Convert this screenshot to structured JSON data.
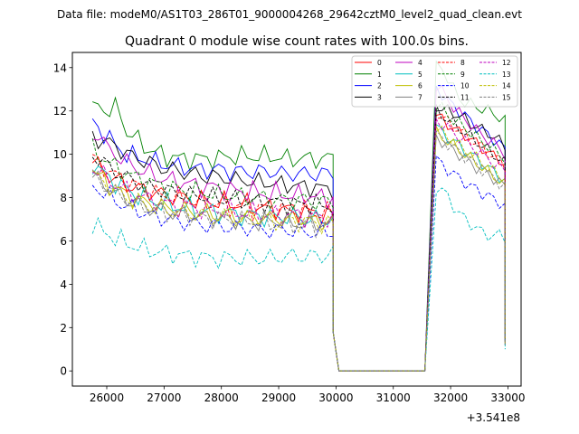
{
  "chart_data": {
    "type": "line",
    "suptitle": "Data file: modeM0/AS1T03_286T01_9000004268_29642cztM0_level2_quad_clean.evt",
    "title": "Quadrant 0 module wise count rates with 100.0s bins.",
    "xlabel": "",
    "ylabel": "",
    "x_offset_label": "+3.541e8",
    "xlim": [
      25400,
      33230
    ],
    "ylim": [
      -0.7,
      14.7
    ],
    "xticks": [
      26000,
      27000,
      28000,
      29000,
      30000,
      31000,
      32000,
      33000
    ],
    "yticks": [
      0,
      2,
      4,
      6,
      8,
      10,
      12,
      14
    ],
    "xtick_labels": [
      "26000",
      "27000",
      "28000",
      "29000",
      "30000",
      "31000",
      "32000",
      "33000"
    ],
    "ytick_labels": [
      "0",
      "2",
      "4",
      "6",
      "8",
      "10",
      "12",
      "14"
    ],
    "legend_position": "upper right",
    "x_start": 25750,
    "x_step": 100,
    "gap": {
      "drop_start": 29900,
      "zero_from": 30050,
      "zero_to": 31550,
      "rise_end": 31750,
      "end": 32950
    },
    "series": [
      {
        "name": "0",
        "color": "#ff0000",
        "dash": "solid",
        "first_good": [
          9.6,
          9.5,
          9.3,
          9.0,
          8.8,
          8.8,
          8.6,
          8.5,
          8.4,
          8.4,
          8.3,
          8.2,
          8.2,
          8.1,
          8.1,
          8.0,
          8.0,
          7.9,
          7.9,
          7.9,
          7.8,
          7.8,
          7.8,
          7.8,
          7.7,
          7.7,
          7.7,
          7.7,
          7.6,
          7.6,
          7.6,
          7.5,
          7.5,
          7.5,
          7.5,
          7.4,
          7.4,
          7.4,
          7.3,
          7.3,
          7.3,
          7.2,
          7.2
        ],
        "second_good": [
          11.8,
          11.6,
          11.4,
          11.2,
          11.0,
          10.9,
          10.7,
          10.5,
          10.3,
          10.1,
          9.9,
          9.8,
          9.5
        ],
        "end_value": 1.4
      },
      {
        "name": "1",
        "color": "#008000",
        "dash": "solid",
        "first_good": [
          12.0,
          12.3,
          12.1,
          12.0,
          12.1,
          11.8,
          11.0,
          10.9,
          10.6,
          10.4,
          10.2,
          10.1,
          10.0,
          9.9,
          9.9,
          9.8,
          9.8,
          9.8,
          9.8,
          9.8,
          9.8,
          9.8,
          9.8,
          9.9,
          9.9,
          9.9,
          9.9,
          9.9,
          9.9,
          9.9,
          9.9,
          9.9,
          9.9,
          9.8,
          9.8,
          9.8,
          9.8,
          9.8,
          9.8,
          9.8,
          9.8,
          9.8,
          9.9
        ],
        "second_good": [
          14.0,
          14.0,
          13.5,
          13.0,
          12.6,
          12.4,
          12.3,
          12.2,
          12.1,
          12.0,
          11.9,
          11.7,
          11.5
        ],
        "end_value": 1.9
      },
      {
        "name": "2",
        "color": "#0000ff",
        "dash": "solid",
        "first_good": [
          11.5,
          11.2,
          11.0,
          10.7,
          10.4,
          10.2,
          10.0,
          9.9,
          9.8,
          9.8,
          9.7,
          9.6,
          9.6,
          9.5,
          9.5,
          9.4,
          9.4,
          9.4,
          9.3,
          9.3,
          9.3,
          9.3,
          9.3,
          9.3,
          9.2,
          9.2,
          9.2,
          9.2,
          9.2,
          9.2,
          9.2,
          9.2,
          9.2,
          9.1,
          9.1,
          9.1,
          9.1,
          9.1,
          9.1,
          9.1,
          9.1,
          9.1,
          9.1
        ],
        "second_good": [
          13.0,
          12.8,
          12.5,
          12.2,
          12.0,
          11.8,
          11.5,
          11.3,
          11.1,
          10.9,
          10.7,
          10.5,
          10.2
        ],
        "end_value": 1.6
      },
      {
        "name": "3",
        "color": "#000000",
        "dash": "solid",
        "first_good": [
          10.8,
          10.7,
          10.6,
          10.5,
          10.4,
          10.2,
          10.0,
          9.9,
          9.8,
          9.7,
          9.6,
          9.5,
          9.4,
          9.3,
          9.3,
          9.2,
          9.2,
          9.1,
          9.1,
          9.0,
          9.0,
          9.0,
          8.9,
          8.9,
          8.9,
          8.8,
          8.8,
          8.8,
          8.7,
          8.7,
          8.7,
          8.7,
          8.6,
          8.6,
          8.6,
          8.6,
          8.5,
          8.5,
          8.5,
          8.5,
          8.4,
          8.4,
          8.4
        ],
        "second_good": [
          12.2,
          12.1,
          12.0,
          11.9,
          11.8,
          11.6,
          11.4,
          11.3,
          11.1,
          11.0,
          10.8,
          10.6,
          10.4
        ],
        "end_value": 1.5
      },
      {
        "name": "4",
        "color": "#bf00bf",
        "dash": "solid",
        "first_good": [
          10.8,
          11.0,
          10.5,
          10.2,
          10.0,
          9.8,
          9.6,
          9.5,
          9.3,
          9.2,
          9.1,
          9.0,
          8.9,
          8.8,
          8.8,
          8.7,
          8.7,
          8.6,
          8.6,
          8.5,
          8.5,
          8.5,
          8.4,
          8.4,
          8.4,
          8.3,
          8.3,
          8.3,
          8.3,
          8.2,
          8.2,
          8.2,
          8.2,
          8.2,
          8.1,
          8.1,
          8.1,
          8.1,
          8.1,
          8.0,
          8.0,
          8.0,
          8.0
        ],
        "second_good": [
          13.2,
          12.9,
          12.5,
          12.2,
          11.9,
          11.6,
          11.4,
          11.1,
          10.9,
          10.7,
          10.5,
          10.3,
          10.0
        ],
        "end_value": 1.7
      },
      {
        "name": "5",
        "color": "#00bfbf",
        "dash": "solid",
        "first_good": [
          9.6,
          9.3,
          9.1,
          8.9,
          8.7,
          8.5,
          8.4,
          8.2,
          8.1,
          8.0,
          7.9,
          7.8,
          7.7,
          7.7,
          7.6,
          7.6,
          7.5,
          7.5,
          7.4,
          7.4,
          7.4,
          7.3,
          7.3,
          7.3,
          7.3,
          7.2,
          7.2,
          7.2,
          7.2,
          7.2,
          7.1,
          7.1,
          7.1,
          7.1,
          7.1,
          7.1,
          7.1,
          7.0,
          7.0,
          7.0,
          7.0,
          7.0,
          7.0
        ],
        "second_good": [
          11.3,
          11.0,
          10.8,
          10.6,
          10.4,
          10.2,
          10.0,
          9.8,
          9.6,
          9.4,
          9.2,
          9.0,
          8.8
        ],
        "end_value": 1.3
      },
      {
        "name": "6",
        "color": "#bfbf00",
        "dash": "solid",
        "first_good": [
          9.3,
          9.0,
          8.8,
          8.6,
          8.4,
          8.3,
          8.1,
          8.0,
          7.9,
          7.8,
          7.7,
          7.7,
          7.6,
          7.5,
          7.5,
          7.4,
          7.4,
          7.4,
          7.3,
          7.3,
          7.3,
          7.2,
          7.2,
          7.2,
          7.2,
          7.1,
          7.1,
          7.1,
          7.1,
          7.1,
          7.1,
          7.0,
          7.0,
          7.0,
          7.0,
          7.0,
          7.0,
          7.0,
          6.9,
          6.9,
          6.9,
          6.9,
          6.9
        ],
        "second_good": [
          11.0,
          10.8,
          10.6,
          10.4,
          10.2,
          10.0,
          9.8,
          9.6,
          9.4,
          9.2,
          9.0,
          8.8,
          8.6
        ],
        "end_value": 1.2
      },
      {
        "name": "7",
        "color": "#808080",
        "dash": "solid",
        "first_good": [
          9.0,
          8.8,
          8.6,
          8.4,
          8.2,
          8.1,
          7.9,
          7.8,
          7.7,
          7.6,
          7.5,
          7.5,
          7.4,
          7.4,
          7.3,
          7.3,
          7.2,
          7.2,
          7.2,
          7.1,
          7.1,
          7.1,
          7.0,
          7.0,
          7.0,
          7.0,
          7.0,
          6.9,
          6.9,
          6.9,
          6.9,
          6.9,
          6.9,
          6.9,
          6.8,
          6.8,
          6.8,
          6.8,
          6.8,
          6.8,
          6.8,
          6.8,
          6.8
        ],
        "second_good": [
          10.8,
          10.6,
          10.4,
          10.2,
          10.0,
          9.8,
          9.6,
          9.4,
          9.3,
          9.1,
          8.9,
          8.7,
          8.5
        ],
        "end_value": 1.2
      },
      {
        "name": "8",
        "color": "#ff0000",
        "dash": "dashed",
        "first_good": [
          9.8,
          9.6,
          9.4,
          9.2,
          9.0,
          8.9,
          8.7,
          8.6,
          8.5,
          8.4,
          8.3,
          8.2,
          8.1,
          8.1,
          8.0,
          8.0,
          7.9,
          7.9,
          7.8,
          7.8,
          7.8,
          7.7,
          7.7,
          7.7,
          7.6,
          7.6,
          7.6,
          7.6,
          7.5,
          7.5,
          7.5,
          7.5,
          7.5,
          7.4,
          7.4,
          7.4,
          7.4,
          7.4,
          7.3,
          7.3,
          7.3,
          7.3,
          7.3
        ],
        "second_good": [
          11.9,
          11.7,
          11.5,
          11.3,
          11.1,
          10.9,
          10.7,
          10.5,
          10.3,
          10.1,
          9.9,
          9.7,
          9.5
        ],
        "end_value": 1.4
      },
      {
        "name": "9",
        "color": "#008000",
        "dash": "dashed",
        "first_good": [
          10.2,
          10.0,
          9.8,
          9.6,
          9.4,
          9.3,
          9.1,
          9.0,
          8.9,
          8.8,
          8.7,
          8.6,
          8.6,
          8.5,
          8.4,
          8.4,
          8.3,
          8.3,
          8.3,
          8.2,
          8.2,
          8.2,
          8.1,
          8.1,
          8.1,
          8.1,
          8.0,
          8.0,
          8.0,
          8.0,
          8.0,
          7.9,
          7.9,
          7.9,
          7.9,
          7.9,
          7.9,
          7.9,
          7.8,
          7.8,
          7.8,
          7.8,
          7.8
        ],
        "second_good": [
          12.3,
          12.1,
          11.8,
          11.6,
          11.4,
          11.2,
          11.0,
          10.8,
          10.6,
          10.4,
          10.2,
          10.0,
          9.8
        ],
        "end_value": 1.5
      },
      {
        "name": "10",
        "color": "#0000ff",
        "dash": "dashed",
        "first_good": [
          8.6,
          8.4,
          8.2,
          8.0,
          7.9,
          7.7,
          7.6,
          7.5,
          7.4,
          7.3,
          7.2,
          7.1,
          7.1,
          7.0,
          7.0,
          6.9,
          6.9,
          6.8,
          6.8,
          6.8,
          6.7,
          6.7,
          6.7,
          6.7,
          6.6,
          6.6,
          6.6,
          6.6,
          6.6,
          6.5,
          6.5,
          6.5,
          6.5,
          6.5,
          6.5,
          6.5,
          6.4,
          6.4,
          6.4,
          6.4,
          6.4,
          6.4,
          6.4
        ],
        "second_good": [
          9.8,
          9.5,
          9.3,
          9.1,
          8.9,
          8.7,
          8.5,
          8.4,
          8.2,
          8.1,
          7.9,
          7.8,
          7.6
        ],
        "end_value": 1.2
      },
      {
        "name": "11",
        "color": "#000000",
        "dash": "dashed",
        "first_good": [
          10.0,
          9.8,
          9.6,
          9.4,
          9.2,
          9.1,
          8.9,
          8.8,
          8.7,
          8.6,
          8.5,
          8.4,
          8.4,
          8.3,
          8.3,
          8.2,
          8.2,
          8.1,
          8.1,
          8.1,
          8.0,
          8.0,
          8.0,
          7.9,
          7.9,
          7.9,
          7.9,
          7.8,
          7.8,
          7.8,
          7.8,
          7.8,
          7.8,
          7.7,
          7.7,
          7.7,
          7.7,
          7.7,
          7.7,
          7.7,
          7.6,
          7.6,
          7.6
        ],
        "second_good": [
          12.0,
          11.8,
          11.6,
          11.4,
          11.2,
          11.0,
          10.8,
          10.6,
          10.4,
          10.2,
          10.0,
          9.8,
          9.6
        ],
        "end_value": 1.4
      },
      {
        "name": "12",
        "color": "#bf00bf",
        "dash": "dashed",
        "first_good": [
          9.4,
          9.2,
          9.0,
          8.8,
          8.6,
          8.5,
          8.3,
          8.2,
          8.1,
          8.0,
          7.9,
          7.9,
          7.8,
          7.7,
          7.7,
          7.6,
          7.6,
          7.6,
          7.5,
          7.5,
          7.5,
          7.4,
          7.4,
          7.4,
          7.4,
          7.3,
          7.3,
          7.3,
          7.3,
          7.3,
          7.2,
          7.2,
          7.2,
          7.2,
          7.2,
          7.2,
          7.2,
          7.1,
          7.1,
          7.1,
          7.1,
          7.1,
          7.1
        ],
        "second_good": [
          11.6,
          11.4,
          11.2,
          11.0,
          10.8,
          10.6,
          10.4,
          10.2,
          10.0,
          9.8,
          9.6,
          9.4,
          9.2
        ],
        "end_value": 1.3
      },
      {
        "name": "13",
        "color": "#00bfbf",
        "dash": "dashed",
        "first_good": [
          6.8,
          6.6,
          6.4,
          6.3,
          6.1,
          6.0,
          5.9,
          5.8,
          5.7,
          5.6,
          5.6,
          5.5,
          5.5,
          5.4,
          5.4,
          5.4,
          5.3,
          5.3,
          5.3,
          5.3,
          5.2,
          5.2,
          5.2,
          5.2,
          5.2,
          5.2,
          5.2,
          5.2,
          5.2,
          5.2,
          5.2,
          5.2,
          5.2,
          5.3,
          5.3,
          5.3,
          5.3,
          5.3,
          5.3,
          5.3,
          5.3,
          5.4,
          5.4
        ],
        "second_good": [
          8.5,
          8.4,
          8.0,
          7.6,
          7.3,
          7.0,
          6.8,
          6.6,
          6.4,
          6.3,
          6.2,
          6.3,
          6.2
        ],
        "end_value": 1.0
      },
      {
        "name": "14",
        "color": "#bfbf00",
        "dash": "dashed",
        "first_good": [
          9.1,
          8.9,
          8.7,
          8.5,
          8.3,
          8.2,
          8.0,
          7.9,
          7.8,
          7.7,
          7.6,
          7.6,
          7.5,
          7.4,
          7.4,
          7.3,
          7.3,
          7.3,
          7.2,
          7.2,
          7.2,
          7.1,
          7.1,
          7.1,
          7.1,
          7.0,
          7.0,
          7.0,
          7.0,
          7.0,
          7.0,
          6.9,
          6.9,
          6.9,
          6.9,
          6.9,
          6.9,
          6.9,
          6.9,
          6.8,
          6.8,
          6.8,
          6.8
        ],
        "second_good": [
          11.2,
          11.0,
          10.8,
          10.6,
          10.4,
          10.2,
          10.0,
          9.8,
          9.6,
          9.4,
          9.2,
          9.0,
          8.8
        ],
        "end_value": 1.2
      },
      {
        "name": "15",
        "color": "#808080",
        "dash": "dashed",
        "first_good": [
          9.0,
          8.8,
          8.6,
          8.4,
          8.2,
          8.1,
          7.9,
          7.8,
          7.7,
          7.6,
          7.5,
          7.5,
          7.4,
          7.3,
          7.3,
          7.2,
          7.2,
          7.2,
          7.1,
          7.1,
          7.1,
          7.0,
          7.0,
          7.0,
          7.0,
          6.9,
          6.9,
          6.9,
          6.9,
          6.9,
          6.9,
          6.8,
          6.8,
          6.8,
          6.8,
          6.8,
          6.8,
          6.8,
          6.8,
          6.7,
          6.7,
          6.7,
          6.7
        ],
        "second_good": [
          10.9,
          10.7,
          10.5,
          10.3,
          10.1,
          9.9,
          9.7,
          9.5,
          9.3,
          9.1,
          8.9,
          8.7,
          8.5
        ],
        "end_value": 1.2
      }
    ]
  }
}
